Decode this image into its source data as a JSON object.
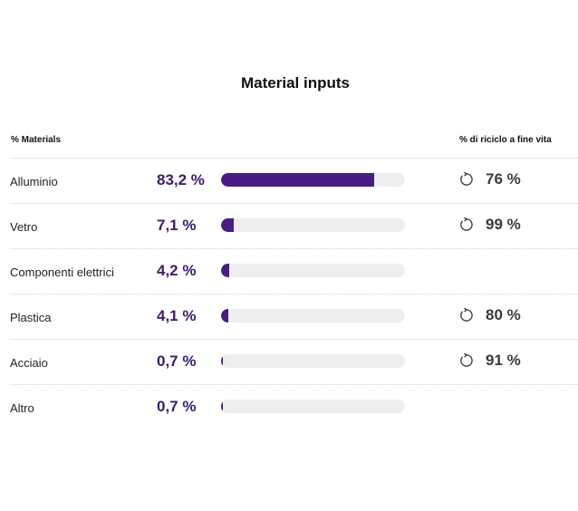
{
  "title": "Material inputs",
  "headers": {
    "materials": "% Materials",
    "recycle": "% di riciclo a fine vita"
  },
  "colors": {
    "accent": "#4a1a85",
    "pct_text": "#3d1a6e",
    "track": "#eeeef0"
  },
  "rows": [
    {
      "name": "Alluminio",
      "percent_label": "83,2 %",
      "percent": 83.2,
      "recycle": "76 %",
      "icon": "recycle-icon"
    },
    {
      "name": "Vetro",
      "percent_label": "7,1 %",
      "percent": 7.1,
      "recycle": "99 %",
      "icon": "recycle-icon"
    },
    {
      "name": "Componenti elettrici",
      "percent_label": "4,2 %",
      "percent": 4.2,
      "recycle": null,
      "icon": null
    },
    {
      "name": "Plastica",
      "percent_label": "4,1 %",
      "percent": 4.1,
      "recycle": "80 %",
      "icon": "recycle-icon"
    },
    {
      "name": "Acciaio",
      "percent_label": "0,7 %",
      "percent": 0.7,
      "recycle": "91 %",
      "icon": "recycle-icon"
    },
    {
      "name": "Altro",
      "percent_label": "0,7 %",
      "percent": 0.7,
      "recycle": null,
      "icon": null
    }
  ]
}
